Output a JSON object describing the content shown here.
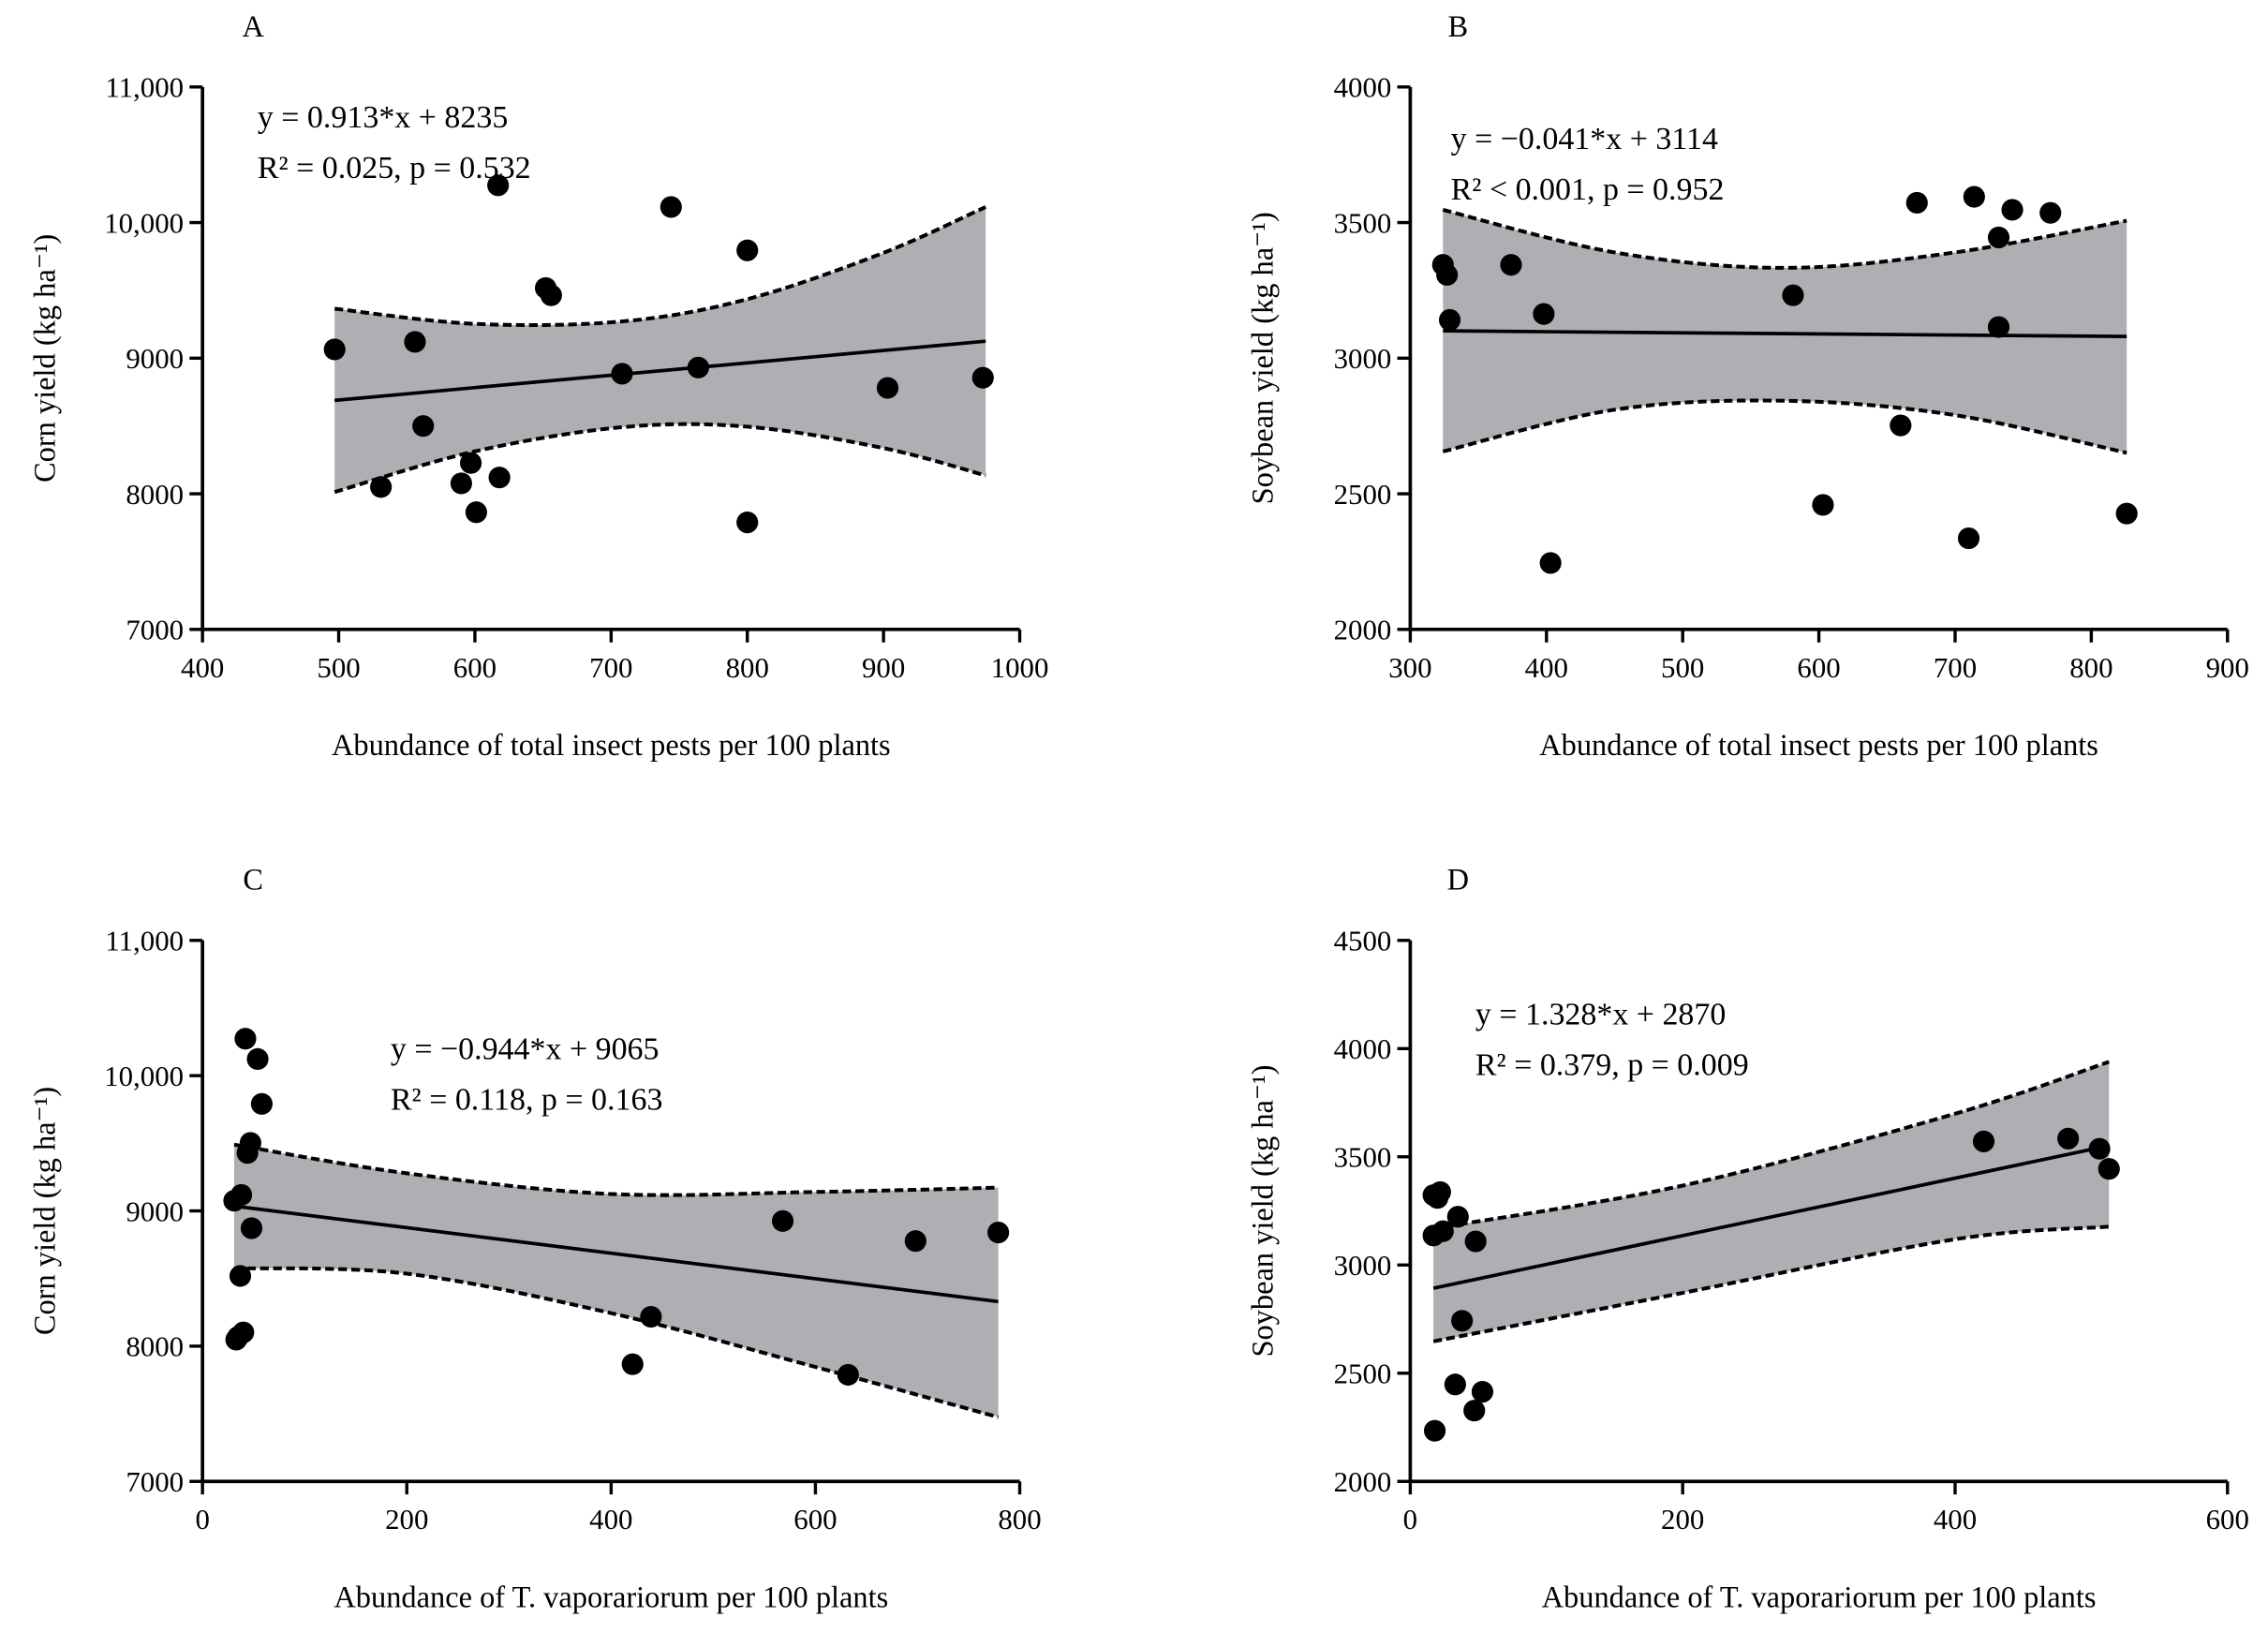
{
  "chart_data": [
    {
      "type": "scatter",
      "panel_label": "A",
      "xlabel": "Abundance of  total insect pests per 100 plants",
      "ylabel": "Corn yield (kg ha⁻¹)",
      "xlim": [
        400,
        1000
      ],
      "ylim": [
        7000,
        11000
      ],
      "xticks": [
        400,
        500,
        600,
        700,
        800,
        900,
        1000
      ],
      "yticks": [
        7000,
        8000,
        9000,
        10000,
        11000
      ],
      "ytick_labels": [
        "7000",
        "8000",
        "9000",
        "10,000",
        "11,000"
      ],
      "equation": "y = 0.913*x + 8235",
      "stats": "R² = 0.025, p = 0.532",
      "fit": {
        "slope": 0.913,
        "intercept": 8235,
        "x_range": [
          497,
          975
        ]
      },
      "ci": {
        "x": [
          497,
          600,
          708,
          800,
          900,
          975
        ],
        "upper": [
          9365,
          9253,
          9271,
          9435,
          9777,
          10115
        ],
        "lower": [
          8013,
          8313,
          8491,
          8495,
          8337,
          8135
        ]
      },
      "points": [
        [
          497,
          9065
        ],
        [
          531,
          8050
        ],
        [
          556,
          9120
        ],
        [
          562,
          8500
        ],
        [
          590,
          8077
        ],
        [
          597,
          8227
        ],
        [
          601,
          7864
        ],
        [
          617,
          10275
        ],
        [
          618,
          8120
        ],
        [
          652,
          9517
        ],
        [
          656,
          9464
        ],
        [
          708,
          8885
        ],
        [
          744,
          10115
        ],
        [
          764,
          8931
        ],
        [
          800,
          9795
        ],
        [
          800,
          7789
        ],
        [
          903,
          8781
        ],
        [
          973,
          8856
        ]
      ]
    },
    {
      "type": "scatter",
      "panel_label": "B",
      "xlabel": "Abundance of  total insect pests per 100 plants",
      "ylabel": "Soybean yield (kg ha⁻¹)",
      "xlim": [
        300,
        900
      ],
      "ylim": [
        2000,
        4000
      ],
      "xticks": [
        300,
        400,
        500,
        600,
        700,
        800,
        900
      ],
      "yticks": [
        2000,
        2500,
        3000,
        3500,
        4000
      ],
      "ytick_labels": [
        "2000",
        "2500",
        "3000",
        "3500",
        "4000"
      ],
      "equation": "y = −0.041*x + 3114",
      "stats": "R² < 0.001, p = 0.952",
      "fit": {
        "slope": -0.041,
        "intercept": 3114,
        "x_range": [
          324,
          826
        ]
      },
      "ci": {
        "x": [
          324,
          450,
          575,
          700,
          826
        ],
        "upper": [
          3547,
          3390,
          3333,
          3390,
          3507
        ],
        "lower": [
          2656,
          2810,
          2843,
          2790,
          2651
        ]
      },
      "points": [
        [
          324,
          3344
        ],
        [
          327,
          3307
        ],
        [
          329,
          3141
        ],
        [
          374,
          3344
        ],
        [
          398,
          3163
        ],
        [
          403,
          2245
        ],
        [
          581,
          3232
        ],
        [
          603,
          2459
        ],
        [
          660,
          2752
        ],
        [
          672,
          3573
        ],
        [
          710,
          2336
        ],
        [
          714,
          3595
        ],
        [
          732,
          3445
        ],
        [
          732,
          3115
        ],
        [
          742,
          3547
        ],
        [
          770,
          3536
        ],
        [
          826,
          2427
        ]
      ]
    },
    {
      "type": "scatter",
      "panel_label": "C",
      "xlabel": "Abundance of  T. vaporariorum per 100 plants",
      "ylabel": "Corn yield (kg ha⁻¹)",
      "xlim": [
        0,
        800
      ],
      "ylim": [
        7000,
        11000
      ],
      "xticks": [
        0,
        200,
        400,
        600,
        800
      ],
      "yticks": [
        7000,
        8000,
        9000,
        10000,
        11000
      ],
      "ytick_labels": [
        "7000",
        "8000",
        "9000",
        "10,000",
        "11,000"
      ],
      "equation": "y = −0.944*x + 9065",
      "stats": "R² = 0.118, p = 0.163",
      "fit": {
        "slope": -0.944,
        "intercept": 9065,
        "x_range": [
          31,
          779
        ]
      },
      "ci": {
        "x": [
          31,
          200,
          400,
          600,
          779
        ],
        "upper": [
          9490,
          9278,
          9125,
          9140,
          9172
        ],
        "lower": [
          8576,
          8536,
          8244,
          7846,
          7475
        ]
      },
      "points": [
        [
          42,
          10273
        ],
        [
          54,
          10123
        ],
        [
          58,
          9791
        ],
        [
          47,
          9503
        ],
        [
          44,
          9428
        ],
        [
          31,
          9075
        ],
        [
          38,
          9118
        ],
        [
          48,
          8872
        ],
        [
          37,
          8519
        ],
        [
          40,
          8102
        ],
        [
          33,
          8048
        ],
        [
          35,
          8070
        ],
        [
          439,
          8217
        ],
        [
          421,
          7866
        ],
        [
          568,
          8925
        ],
        [
          632,
          7788
        ],
        [
          698,
          8777
        ],
        [
          779,
          8840
        ]
      ]
    },
    {
      "type": "scatter",
      "panel_label": "D",
      "xlabel": "Abundance of  T. vaporariorum per 100 plants",
      "ylabel": "Soybean yield (kg ha⁻¹)",
      "xlim": [
        0,
        600
      ],
      "ylim": [
        2000,
        4500
      ],
      "xticks": [
        0,
        200,
        400,
        600
      ],
      "yticks": [
        2000,
        2500,
        3000,
        3500,
        4000,
        4500
      ],
      "ytick_labels": [
        "2000",
        "2500",
        "3000",
        "3500",
        "4000",
        "4500"
      ],
      "equation": "y = 1.328*x + 2870",
      "stats": "R² = 0.379, p = 0.009",
      "fit": {
        "slope": 1.328,
        "intercept": 2870,
        "x_range": [
          17,
          513
        ]
      },
      "ci": {
        "x": [
          17,
          200,
          400,
          513
        ],
        "upper": [
          3169,
          3367,
          3699,
          3939
        ],
        "lower": [
          2647,
          2871,
          3119,
          3177
        ]
      },
      "points": [
        [
          17,
          3136
        ],
        [
          17,
          3323
        ],
        [
          22,
          3337
        ],
        [
          20,
          3310
        ],
        [
          24,
          3156
        ],
        [
          35,
          3223
        ],
        [
          48,
          3109
        ],
        [
          38,
          2742
        ],
        [
          33,
          2448
        ],
        [
          53,
          2414
        ],
        [
          47,
          2327
        ],
        [
          18,
          2234
        ],
        [
          421,
          3571
        ],
        [
          483,
          3584
        ],
        [
          506,
          3537
        ],
        [
          513,
          3444
        ]
      ]
    }
  ],
  "colors": {
    "band": "#aeafb3",
    "ink": "#000000"
  }
}
